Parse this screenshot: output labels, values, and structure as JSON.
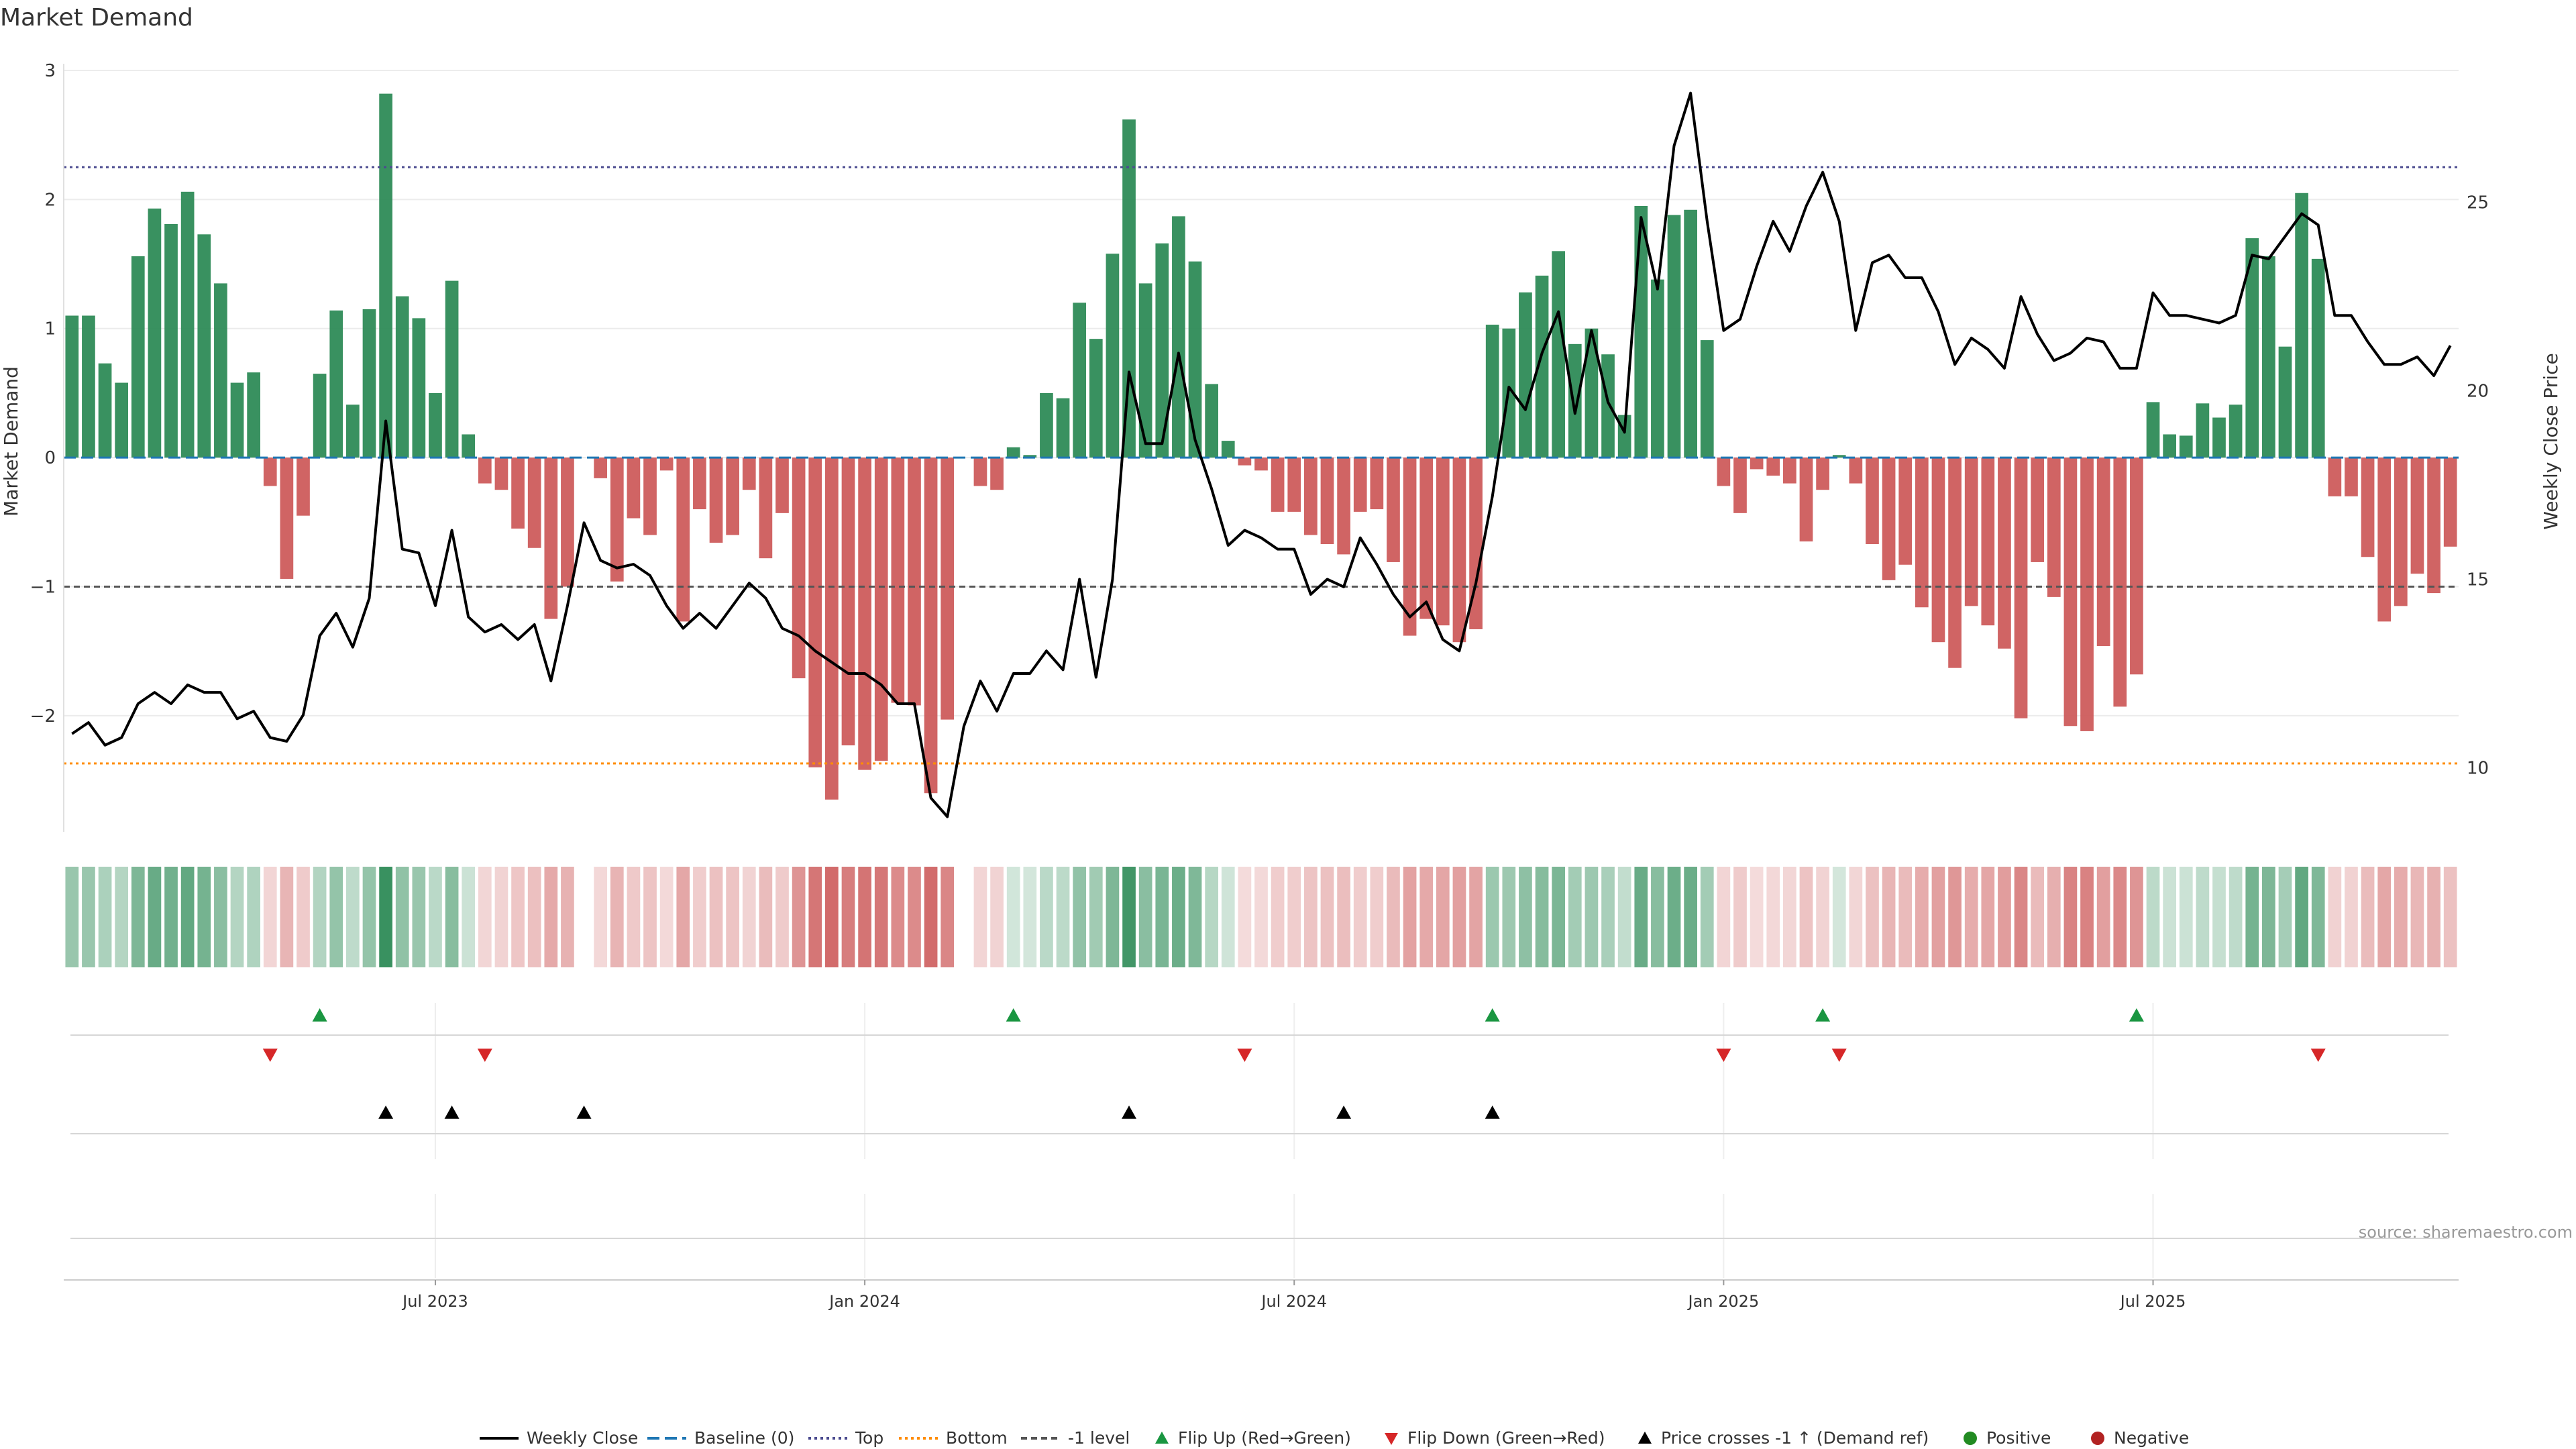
{
  "title": "Market Demand",
  "source": "source: sharemaestro.com",
  "colors": {
    "positive_bar": "#2e8b57",
    "negative_bar": "#cd5c5c",
    "price_line": "#000000",
    "baseline": "#1f77b4",
    "top_line": "#4b4b8f",
    "bottom_line": "#ff8c00",
    "minus1_line": "#555555",
    "flip_up": "#1a9641",
    "flip_down": "#d62728",
    "cross": "#000000"
  },
  "chart_data": {
    "type": "bar",
    "xlabel": "",
    "ylabel": "Market Demand",
    "y2label": "Weekly Close Price",
    "ylim": [
      -2.9,
      3.0
    ],
    "y_ticks": [
      3,
      2,
      1,
      0,
      -1,
      -2
    ],
    "y_tick_labels": [
      "3",
      "2",
      "1",
      "0",
      "−1",
      "−2"
    ],
    "y2lim": [
      8.3,
      28.5
    ],
    "y2_ticks": [
      25,
      20,
      15,
      10
    ],
    "x_tick_labels": [
      "Jul 2023",
      "Jan 2024",
      "Jul 2024",
      "Jan 2025",
      "Jul 2025"
    ],
    "x_tick_weeks": [
      22,
      48,
      74,
      100,
      126
    ],
    "levels": {
      "baseline": 0,
      "top": 2.25,
      "bottom": -2.37,
      "minus1": -1
    },
    "demand": [
      1.1,
      1.1,
      0.73,
      0.58,
      1.56,
      1.93,
      1.81,
      2.06,
      1.73,
      1.35,
      0.58,
      0.66,
      -0.22,
      -0.94,
      -0.45,
      0.65,
      1.14,
      0.41,
      1.15,
      2.82,
      1.25,
      1.08,
      0.5,
      1.37,
      0.18,
      -0.2,
      -0.25,
      -0.55,
      -0.7,
      -1.25,
      -1.0,
      0.0,
      -0.16,
      -0.96,
      -0.47,
      -0.6,
      -0.1,
      -1.27,
      -0.4,
      -0.66,
      -0.6,
      -0.25,
      -0.78,
      -0.43,
      -1.71,
      -2.4,
      -2.65,
      -2.23,
      -2.42,
      -2.35,
      -1.9,
      -1.92,
      -2.6,
      -2.03,
      0.0,
      -0.22,
      -0.25,
      0.08,
      0.02,
      0.5,
      0.46,
      1.2,
      0.92,
      1.58,
      2.62,
      1.35,
      1.66,
      1.87,
      1.52,
      0.57,
      0.13,
      -0.06,
      -0.1,
      -0.42,
      -0.42,
      -0.6,
      -0.67,
      -0.75,
      -0.42,
      -0.4,
      -0.81,
      -1.38,
      -1.25,
      -1.3,
      -1.43,
      -1.33,
      1.03,
      1.0,
      1.28,
      1.41,
      1.6,
      0.88,
      1.0,
      0.8,
      0.33,
      1.95,
      1.38,
      1.88,
      1.92,
      0.91,
      -0.22,
      -0.43,
      -0.09,
      -0.14,
      -0.2,
      -0.65,
      -0.25,
      0.02,
      -0.2,
      -0.67,
      -0.95,
      -0.83,
      -1.16,
      -1.43,
      -1.63,
      -1.15,
      -1.3,
      -1.48,
      -2.02,
      -0.81,
      -1.08,
      -2.08,
      -2.12,
      -1.46,
      -1.93,
      -1.68,
      0.43,
      0.18,
      0.17,
      0.42,
      0.31,
      0.41,
      1.7,
      1.56,
      0.86,
      2.05,
      1.54,
      -0.3,
      -0.3,
      -0.77,
      -1.27,
      -1.15,
      -0.9,
      -1.05,
      -0.69
    ],
    "price": [
      10.9,
      11.2,
      10.6,
      10.8,
      11.7,
      12.0,
      11.7,
      12.2,
      12.0,
      12.0,
      11.3,
      11.5,
      10.8,
      10.7,
      11.4,
      13.5,
      14.1,
      13.2,
      14.5,
      19.2,
      15.8,
      15.7,
      14.3,
      16.3,
      14.0,
      13.6,
      13.8,
      13.4,
      13.8,
      12.3,
      14.3,
      16.5,
      15.5,
      15.3,
      15.4,
      15.1,
      14.3,
      13.7,
      14.1,
      13.7,
      14.3,
      14.9,
      14.5,
      13.7,
      13.5,
      13.1,
      12.8,
      12.5,
      12.5,
      12.2,
      11.7,
      11.7,
      9.2,
      8.7,
      11.1,
      12.3,
      11.5,
      12.5,
      12.5,
      13.1,
      12.6,
      15.0,
      12.4,
      15.0,
      20.5,
      18.6,
      18.6,
      21.0,
      18.7,
      17.4,
      15.9,
      16.3,
      16.1,
      15.8,
      15.8,
      14.6,
      15.0,
      14.8,
      16.1,
      15.4,
      14.6,
      14.0,
      14.4,
      13.4,
      13.1,
      14.9,
      17.2,
      20.1,
      19.5,
      21.0,
      22.1,
      19.4,
      21.6,
      19.7,
      18.9,
      24.6,
      22.7,
      26.5,
      27.9,
      24.5,
      21.6,
      21.9,
      23.3,
      24.5,
      23.7,
      24.9,
      25.8,
      24.5,
      21.6,
      23.4,
      23.6,
      23.0,
      23.0,
      22.1,
      20.7,
      21.4,
      21.1,
      20.6,
      22.5,
      21.5,
      20.8,
      21.0,
      21.4,
      21.3,
      20.6,
      20.6,
      22.6,
      22.0,
      22.0,
      21.9,
      21.8,
      22.0,
      23.6,
      23.5,
      24.1,
      24.7,
      24.4,
      22.0,
      22.0,
      21.3,
      20.7,
      20.7,
      20.9,
      20.4,
      21.2
    ],
    "markers": {
      "flip_up_weeks": [
        15,
        57,
        86,
        106,
        125
      ],
      "flip_down_weeks": [
        12,
        25,
        71,
        100,
        107,
        136
      ],
      "cross_weeks": [
        19,
        23,
        31,
        64,
        77,
        86
      ]
    },
    "legend_position": "bottom-center",
    "legend": [
      "Weekly Close",
      "Baseline (0)",
      "Top",
      "Bottom",
      "-1 level",
      "Flip Up (Red→Green)",
      "Flip Down (Green→Red)",
      "Price crosses -1 ↑ (Demand ref)",
      "Positive",
      "Negative"
    ]
  }
}
